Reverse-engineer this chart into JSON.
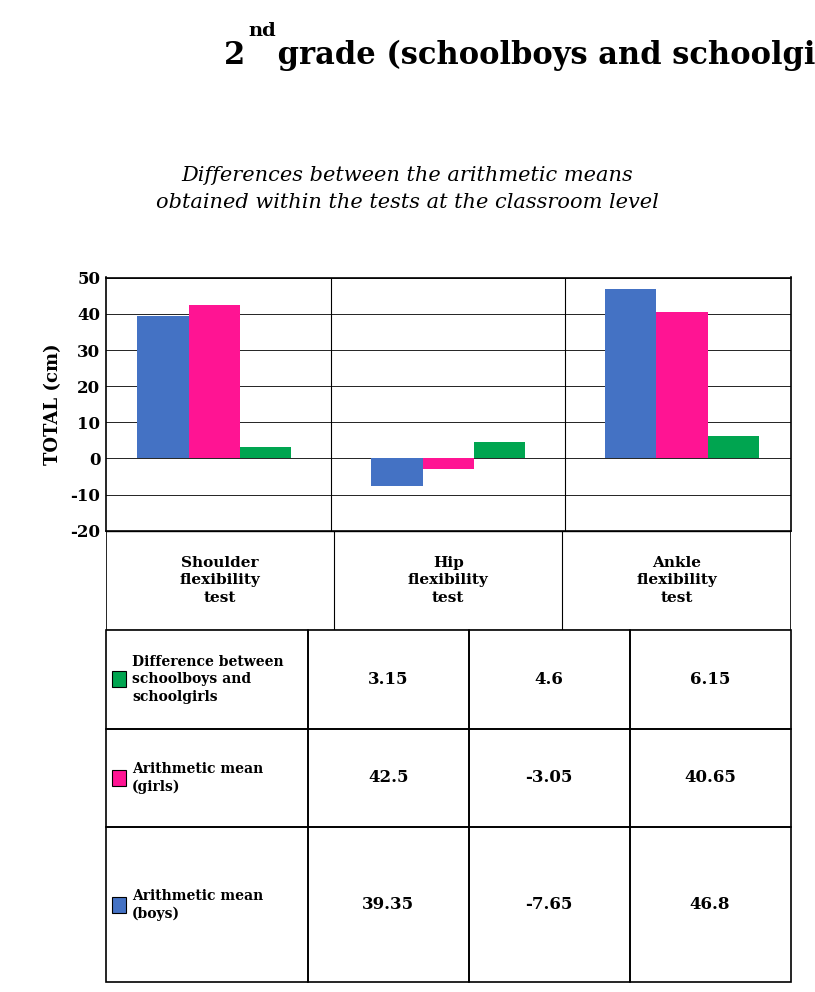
{
  "title_main": "2",
  "title_super": "nd",
  "title_rest": " grade (schoolboys and schoolgirls)",
  "subtitle": "Differences between the arithmetic means\nobtained within the tests at the classroom level",
  "ylabel": "TOTAL (cm)",
  "categories": [
    "Shoulder\nflexibility\ntest",
    "Hip\nflexibility\ntest",
    "Ankle\nflexibility\ntest"
  ],
  "boys": [
    39.35,
    -7.65,
    46.8
  ],
  "girls": [
    42.5,
    -3.05,
    40.65
  ],
  "diff": [
    3.15,
    4.6,
    6.15
  ],
  "boys_color": "#4472C4",
  "girls_color": "#FF1493",
  "diff_color": "#00A550",
  "ylim": [
    -20,
    50
  ],
  "yticks": [
    -20,
    -10,
    0,
    10,
    20,
    30,
    40,
    50
  ],
  "bar_width": 0.22,
  "table_row_labels": [
    "Arithmetic mean\n(boys)",
    "Arithmetic mean\n(girls)",
    "Difference between\nschoolboys and\nschoolgirls"
  ],
  "table_data": [
    [
      "39.35",
      "-7.65",
      "46.8"
    ],
    [
      "42.5",
      "-3.05",
      "40.65"
    ],
    [
      "3.15",
      "4.6",
      "6.15"
    ]
  ],
  "table_colors": [
    "#4472C4",
    "#FF1493",
    "#00A550"
  ]
}
